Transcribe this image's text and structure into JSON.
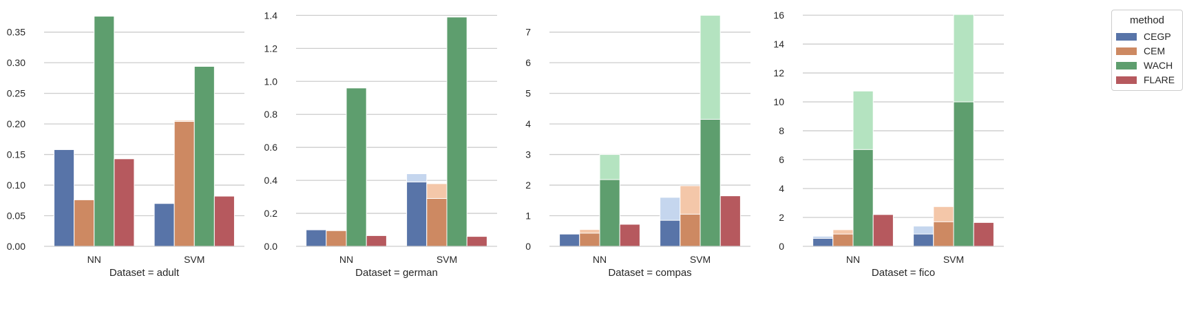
{
  "figure": {
    "legend": {
      "title": "method",
      "entries": [
        {
          "label": "CEGP",
          "color": "#5874a8"
        },
        {
          "label": "CEM",
          "color": "#cd8962"
        },
        {
          "label": "WACH",
          "color": "#5e9e6e"
        },
        {
          "label": "FLARE",
          "color": "#b6595e"
        }
      ]
    },
    "overlay_colors": {
      "CEGP": "#c5d6ee",
      "CEM": "#f4c7a9",
      "WACH": "#b4e3c0",
      "FLARE": "#f0b6b6"
    }
  },
  "chart_data": [
    {
      "type": "bar",
      "xlabel": "Dataset = adult",
      "ylabel": "",
      "categories": [
        "NN",
        "SVM"
      ],
      "ylim": [
        0,
        0.38
      ],
      "yticks": [
        0.0,
        0.05,
        0.1,
        0.15,
        0.2,
        0.25,
        0.3,
        0.35
      ],
      "ytick_labels": [
        "0.00",
        "0.05",
        "0.10",
        "0.15",
        "0.20",
        "0.25",
        "0.30",
        "0.35"
      ],
      "grid": "y",
      "series": [
        {
          "name": "CEGP",
          "values": [
            0.158,
            0.07
          ],
          "upper": [
            null,
            null
          ]
        },
        {
          "name": "CEM",
          "values": [
            0.076,
            0.204
          ],
          "upper": [
            null,
            0.206
          ]
        },
        {
          "name": "WACH",
          "values": [
            0.376,
            0.294
          ],
          "upper": [
            null,
            null
          ]
        },
        {
          "name": "FLARE",
          "values": [
            0.143,
            0.082
          ],
          "upper": [
            null,
            null
          ]
        }
      ]
    },
    {
      "type": "bar",
      "xlabel": "Dataset = german",
      "ylabel": "",
      "categories": [
        "NN",
        "SVM"
      ],
      "ylim": [
        0,
        1.41
      ],
      "yticks": [
        0.0,
        0.2,
        0.4,
        0.6,
        0.8,
        1.0,
        1.2,
        1.4
      ],
      "ytick_labels": [
        "0.0",
        "0.2",
        "0.4",
        "0.6",
        "0.8",
        "1.0",
        "1.2",
        "1.4"
      ],
      "grid": "y",
      "series": [
        {
          "name": "CEGP",
          "values": [
            0.1,
            0.39
          ],
          "upper": [
            null,
            0.44
          ]
        },
        {
          "name": "CEM",
          "values": [
            0.095,
            0.29
          ],
          "upper": [
            null,
            0.38
          ]
        },
        {
          "name": "WACH",
          "values": [
            0.96,
            1.39
          ],
          "upper": [
            null,
            null
          ]
        },
        {
          "name": "FLARE",
          "values": [
            0.065,
            0.06
          ],
          "upper": [
            null,
            null
          ]
        }
      ]
    },
    {
      "type": "bar",
      "xlabel": "Dataset = compas",
      "ylabel": "",
      "categories": [
        "NN",
        "SVM"
      ],
      "ylim": [
        0,
        7.6
      ],
      "yticks": [
        0,
        1,
        2,
        3,
        4,
        5,
        6,
        7
      ],
      "ytick_labels": [
        "0",
        "1",
        "2",
        "3",
        "4",
        "5",
        "6",
        "7"
      ],
      "grid": "y",
      "series": [
        {
          "name": "CEGP",
          "values": [
            0.4,
            0.85
          ],
          "upper": [
            null,
            1.6
          ]
        },
        {
          "name": "CEM",
          "values": [
            0.43,
            1.05
          ],
          "upper": [
            0.55,
            1.98
          ]
        },
        {
          "name": "WACH",
          "values": [
            2.18,
            4.15
          ],
          "upper": [
            3.0,
            7.55
          ]
        },
        {
          "name": "FLARE",
          "values": [
            0.72,
            1.65
          ],
          "upper": [
            null,
            null
          ]
        }
      ]
    },
    {
      "type": "bar",
      "xlabel": "Dataset = fico",
      "ylabel": "",
      "categories": [
        "NN",
        "SVM"
      ],
      "ylim": [
        0,
        16.1
      ],
      "yticks": [
        0,
        2,
        4,
        6,
        8,
        10,
        12,
        14,
        16
      ],
      "ytick_labels": [
        "0",
        "2",
        "4",
        "6",
        "8",
        "10",
        "12",
        "14",
        "16"
      ],
      "grid": "y",
      "series": [
        {
          "name": "CEGP",
          "values": [
            0.55,
            0.85
          ],
          "upper": [
            0.7,
            1.4
          ]
        },
        {
          "name": "CEM",
          "values": [
            0.85,
            1.7
          ],
          "upper": [
            1.15,
            2.75
          ]
        },
        {
          "name": "WACH",
          "values": [
            6.7,
            10.0
          ],
          "upper": [
            10.75,
            16.05
          ]
        },
        {
          "name": "FLARE",
          "values": [
            2.2,
            1.65
          ],
          "upper": [
            null,
            null
          ]
        }
      ]
    }
  ]
}
